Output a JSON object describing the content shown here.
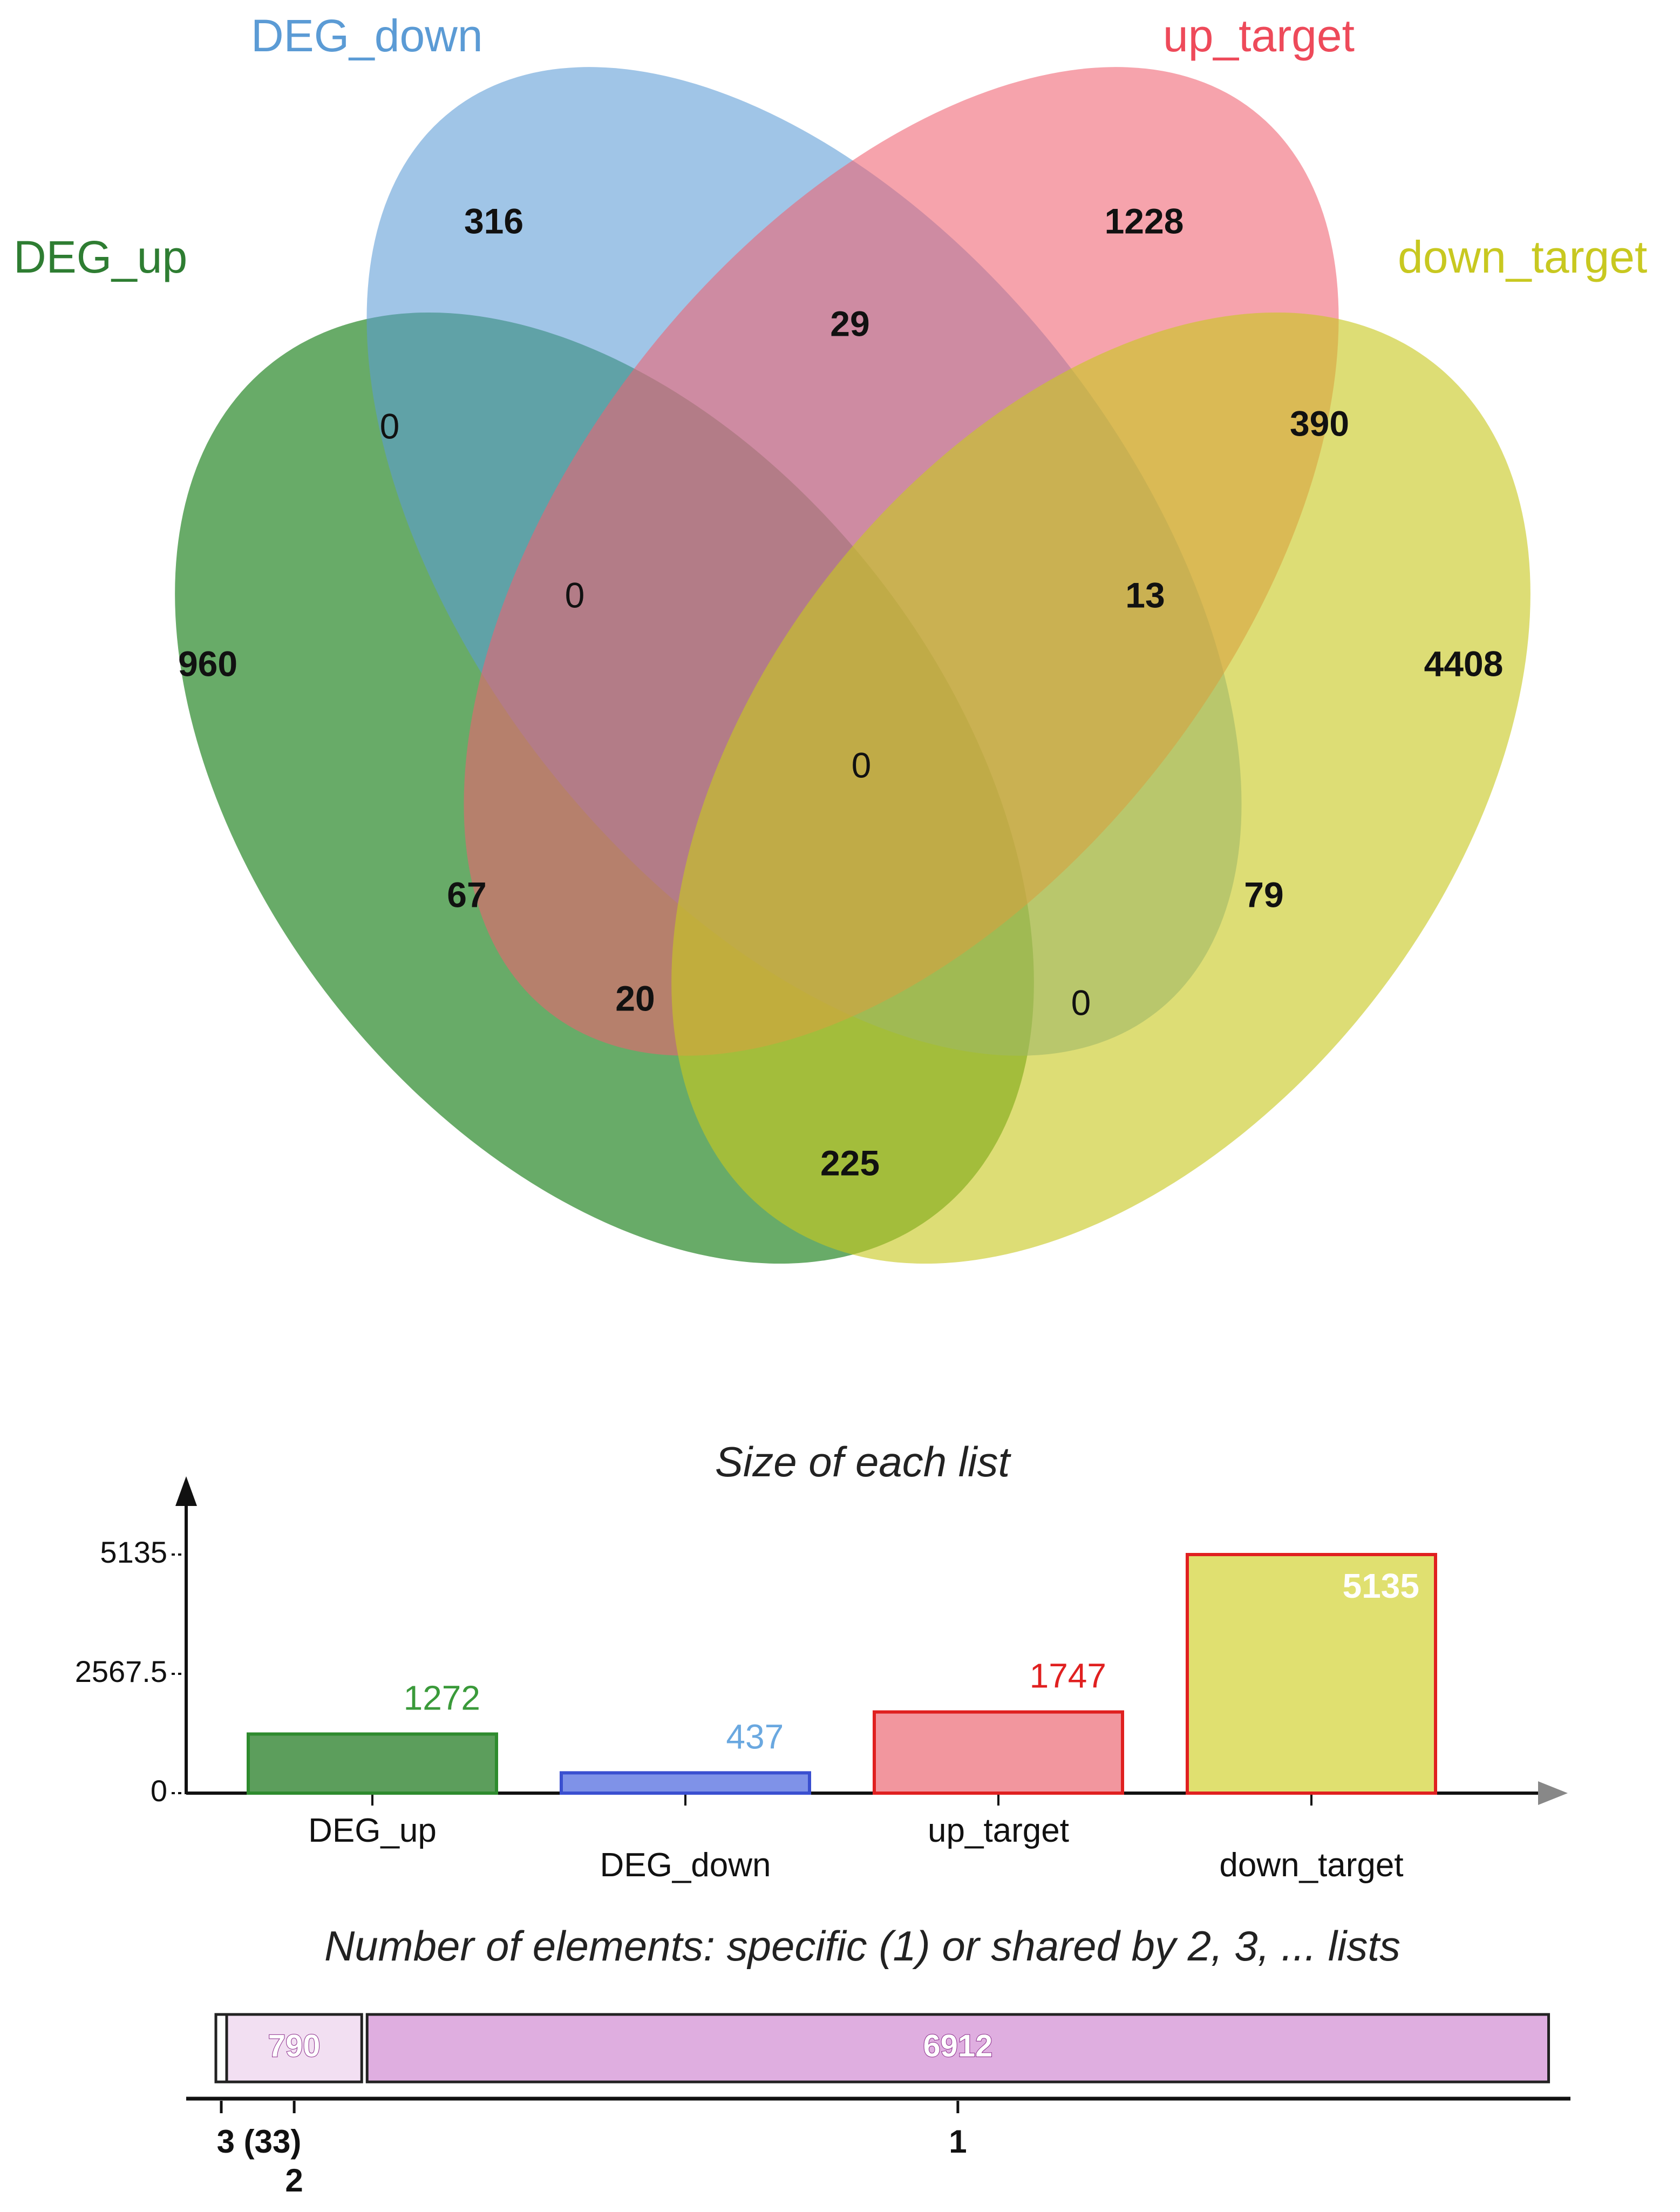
{
  "venn": {
    "sets": [
      {
        "name": "DEG_up",
        "color": "#2e8b2e"
      },
      {
        "name": "DEG_down",
        "color": "#5b9bd5"
      },
      {
        "name": "up_target",
        "color": "#f06070"
      },
      {
        "name": "down_target",
        "color": "#c8c820"
      }
    ],
    "regions": [
      {
        "id": "up_only",
        "count": "960",
        "bold": true
      },
      {
        "id": "down_only",
        "count": "316",
        "bold": true
      },
      {
        "id": "uptarget_only",
        "count": "1228",
        "bold": true
      },
      {
        "id": "downtarget_only",
        "count": "4408",
        "bold": true
      },
      {
        "id": "up_down",
        "count": "0",
        "bold": false
      },
      {
        "id": "down_uptarget",
        "count": "29",
        "bold": true
      },
      {
        "id": "uptarget_downtarget",
        "count": "390",
        "bold": true
      },
      {
        "id": "up_down_uptarget",
        "count": "0",
        "bold": false
      },
      {
        "id": "down_uptarget_downtarget",
        "count": "13",
        "bold": true
      },
      {
        "id": "all",
        "count": "0",
        "bold": false
      },
      {
        "id": "up_uptarget",
        "count": "67",
        "bold": true
      },
      {
        "id": "down_downtarget",
        "count": "79",
        "bold": true
      },
      {
        "id": "up_uptarget_downtarget",
        "count": "20",
        "bold": true
      },
      {
        "id": "up_down_downtarget",
        "count": "0",
        "bold": false
      },
      {
        "id": "up_downtarget",
        "count": "225",
        "bold": true
      }
    ]
  },
  "chart_data": {
    "type": "bar",
    "title": "Size of each list",
    "categories": [
      "DEG_up",
      "DEG_down",
      "up_target",
      "down_target"
    ],
    "values": [
      1272,
      437,
      1747,
      5135
    ],
    "value_labels": [
      "1272",
      "437",
      "1747",
      "5135"
    ],
    "yticks": [
      "0",
      "2567.5",
      "5135"
    ],
    "ylim": [
      0,
      5135
    ],
    "fill_colors": [
      "#5c9e5c",
      "#7f92e8",
      "#f2969e",
      "#e0e070"
    ],
    "stroke_colors": [
      "#2e8b2e",
      "#3a4fd0",
      "#e02020",
      "#e02020"
    ],
    "label_colors": [
      "#3a9a3a",
      "#6aa8e0",
      "#e02020",
      "#ffffff"
    ]
  },
  "shared": {
    "title": "Number of elements: specific (1) or shared by 2, 3, ... lists",
    "segments": [
      {
        "label": "3 (33)",
        "value": 33,
        "text": ""
      },
      {
        "label": "2",
        "value": 790,
        "text": "790"
      },
      {
        "label": "1",
        "value": 6912,
        "text": "6912"
      }
    ]
  }
}
